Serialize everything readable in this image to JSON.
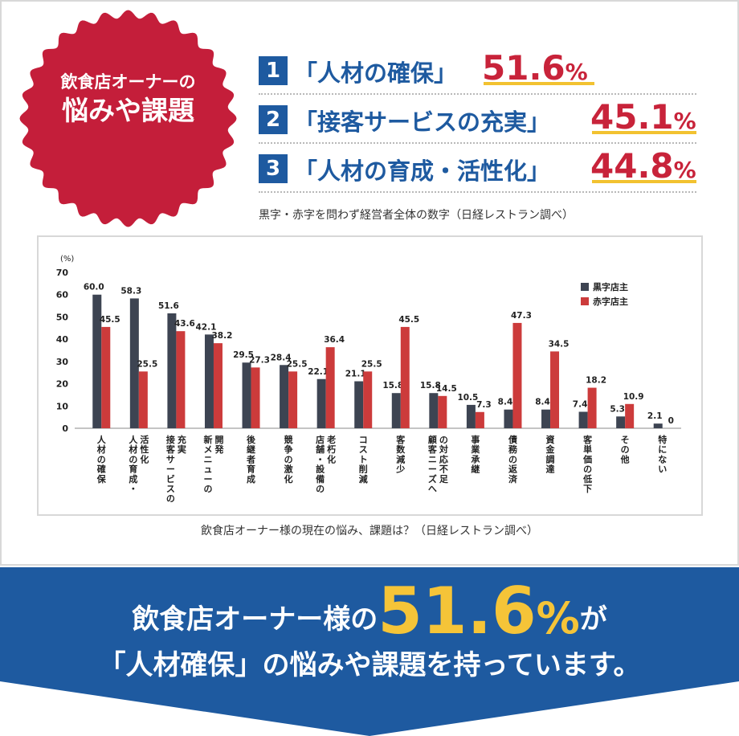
{
  "badge": {
    "line1": "飲食店オーナーの",
    "line2": "悩みや課題"
  },
  "top3": [
    {
      "rank": "1",
      "label": "「人材の確保」",
      "pct": "51.6",
      "unit": "%"
    },
    {
      "rank": "2",
      "label": "「接客サービスの充実」",
      "pct": "45.1",
      "unit": "%"
    },
    {
      "rank": "3",
      "label": "「人材の育成・活性化」",
      "pct": "44.8",
      "unit": "%"
    }
  ],
  "top3_note": "黒字・赤字を問わず経営者全体の数字（日経レストラン調べ）",
  "chart_caption": "飲食店オーナー様の現在の悩み、課題は？（日経レストラン調べ）",
  "banner": {
    "line1_pre": "飲食店オーナー様の",
    "line1_num": "51.6",
    "line1_unit": "%",
    "line1_post": "が",
    "line2": "「人材確保」の悩みや課題を持っています。"
  },
  "colors": {
    "black_series": "#3d4452",
    "red_series": "#cc3b3b",
    "badge": "#c41e3a",
    "banner": "#1e5aa0",
    "accent": "#f5c438"
  },
  "chart_data": {
    "type": "bar",
    "y_unit_label": "(%)",
    "ylim": [
      0,
      70
    ],
    "yticks": [
      0,
      10,
      20,
      30,
      40,
      50,
      60,
      70
    ],
    "categories": [
      "人材の確保",
      "人材の育成・\n活性化",
      "接客サービスの\n充実",
      "新メニューの\n開発",
      "後継者育成",
      "競争の激化",
      "店舗・設備の\n老朽化",
      "コスト削減",
      "客数減少",
      "顧客ニーズへ\nの対応不足",
      "事業承継",
      "債務の返済",
      "資金調達",
      "客単価の低下",
      "その他",
      "特にない"
    ],
    "series": [
      {
        "name": "黒字店主",
        "values": [
          60.0,
          58.3,
          51.6,
          42.1,
          29.5,
          28.4,
          22.1,
          21.1,
          15.8,
          15.8,
          10.5,
          8.4,
          8.4,
          7.4,
          5.3,
          2.1
        ]
      },
      {
        "name": "赤字店主",
        "values": [
          45.5,
          25.5,
          43.6,
          38.2,
          27.3,
          25.5,
          36.4,
          25.5,
          45.5,
          14.5,
          7.3,
          47.3,
          34.5,
          18.2,
          10.9,
          0
        ]
      }
    ],
    "value_labels": [
      [
        "60.0",
        "58.3",
        "51.6",
        "42.1",
        "29.5",
        "28.4",
        "22.1",
        "21.1",
        "15.8",
        "15.8",
        "10.5",
        "8.4",
        "8.4",
        "7.4",
        "5.3",
        "2.1"
      ],
      [
        "45.5",
        "25.5",
        "43.6",
        "38.2",
        "27.3",
        "25.5",
        "36.4",
        "25.5",
        "45.5",
        "14.5",
        "7.3",
        "47.3",
        "34.5",
        "18.2",
        "10.9",
        "0"
      ]
    ],
    "legend_position": "top-right",
    "grid": false
  }
}
